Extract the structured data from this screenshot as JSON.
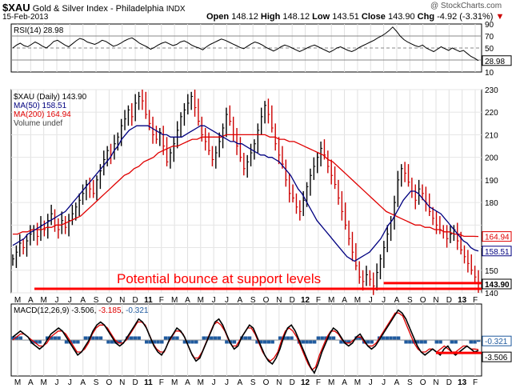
{
  "header": {
    "symbol": "$XAU",
    "name": "Gold & Silver Index - Philadelphia",
    "exchange": "INDX",
    "date": "15-Feb-2013",
    "open_label": "Open",
    "open": "148.12",
    "high_label": "High",
    "high": "148.12",
    "low_label": "Low",
    "low": "143.51",
    "close_label": "Close",
    "close": "143.90",
    "chg_label": "Chg",
    "chg": "-4.92 (-3.31%)",
    "chg_arrow": "▼",
    "watermark": "@ StockCharts.com"
  },
  "colors": {
    "price_up": "#000000",
    "price_down": "#cc0000",
    "ma50": "#000080",
    "ma200": "#e00000",
    "support": "#ff0000",
    "macd_signal": "#e00000",
    "macd_hist": "#1f5a9e"
  },
  "annotation": {
    "text": "Potential bounce at support levels",
    "color": "#ff0000"
  },
  "chart_data": [
    {
      "type": "line",
      "title": "RSI(14) 28.98",
      "ylim": [
        10,
        90
      ],
      "ticks": [
        10,
        30,
        50,
        70,
        90
      ],
      "reference_lines": [
        30,
        50,
        70
      ],
      "last_label": "28.98",
      "series": [
        {
          "name": "RSI(14)",
          "values": [
            50,
            55,
            58,
            54,
            52,
            56,
            60,
            57,
            53,
            50,
            55,
            61,
            63,
            59,
            55,
            52,
            57,
            62,
            66,
            64,
            60,
            58,
            56,
            59,
            63,
            61,
            57,
            53,
            55,
            58,
            62,
            65,
            67,
            63,
            58,
            55,
            52,
            48,
            51,
            55,
            58,
            60,
            57,
            54,
            56,
            60,
            62,
            59,
            55,
            52,
            50,
            47,
            52,
            56,
            59,
            62,
            65,
            63,
            60,
            57,
            54,
            51,
            49,
            53,
            57,
            60,
            58,
            55,
            51,
            48,
            45,
            48,
            52,
            55,
            53,
            50,
            47,
            44,
            47,
            50,
            53,
            55,
            52,
            49,
            46,
            43,
            46,
            50,
            52,
            49,
            46,
            44,
            47,
            51,
            54,
            57,
            60,
            63,
            67,
            70,
            74,
            79,
            85,
            78,
            70,
            64,
            60,
            57,
            54,
            52,
            55,
            50,
            47,
            44,
            48,
            52,
            49,
            46,
            50,
            47,
            44,
            46,
            41,
            36,
            33,
            29
          ]
        }
      ]
    },
    {
      "type": "line",
      "title": "$XAU (Daily) 143.90",
      "ylim": [
        140,
        230
      ],
      "ticks": [
        140,
        150,
        160,
        170,
        180,
        190,
        200,
        210,
        220,
        230
      ],
      "x_ticks": [
        "M",
        "A",
        "M",
        "J",
        "J",
        "A",
        "S",
        "O",
        "N",
        "D",
        "11",
        "F",
        "M",
        "A",
        "M",
        "J",
        "J",
        "A",
        "S",
        "O",
        "N",
        "D",
        "12",
        "F",
        "M",
        "A",
        "M",
        "J",
        "J",
        "A",
        "S",
        "O",
        "N",
        "D",
        "13",
        "F"
      ],
      "close": [
        155,
        158,
        162,
        160,
        163,
        166,
        168,
        165,
        170,
        168,
        172,
        175,
        170,
        168,
        172,
        169,
        172,
        175,
        178,
        181,
        184,
        188,
        186,
        184,
        190,
        194,
        199,
        203,
        201,
        206,
        209,
        214,
        217,
        221,
        218,
        224,
        227,
        225,
        219,
        215,
        210,
        208,
        211,
        205,
        198,
        202,
        206,
        212,
        218,
        221,
        224,
        227,
        222,
        216,
        210,
        207,
        203,
        199,
        202,
        207,
        213,
        219,
        216,
        210,
        205,
        200,
        195,
        198,
        202,
        206,
        212,
        218,
        223,
        219,
        213,
        206,
        201,
        197,
        190,
        184,
        182,
        178,
        176,
        181,
        187,
        192,
        196,
        200,
        204,
        201,
        196,
        192,
        188,
        182,
        176,
        170,
        164,
        158,
        152,
        147,
        145,
        148,
        146,
        143,
        149,
        155,
        160,
        166,
        172,
        180,
        190,
        195,
        193,
        189,
        185,
        181,
        186,
        184,
        180,
        176,
        173,
        170,
        168,
        167,
        164,
        166,
        168,
        163,
        159,
        156,
        153,
        150,
        147,
        144
      ],
      "last_label": "143.90",
      "series": [
        {
          "name": "MA(50)",
          "label": "MA(50) 158.51",
          "values": [
            161,
            162,
            163,
            164,
            166,
            167,
            168,
            169,
            170,
            171,
            172,
            173,
            174,
            175,
            176,
            178,
            180,
            182,
            184,
            186,
            188,
            190,
            192,
            194,
            196,
            198,
            200,
            203,
            205,
            208,
            210,
            212,
            213,
            214,
            214,
            214,
            214,
            213,
            212,
            211,
            210,
            210,
            209,
            209,
            209,
            209,
            210,
            211,
            212,
            213,
            214,
            214,
            213,
            212,
            211,
            210,
            209,
            208,
            207,
            207,
            206,
            206,
            205,
            204,
            203,
            202,
            201,
            201,
            200,
            200,
            199,
            198,
            196,
            194,
            192,
            189,
            186,
            184,
            181,
            178,
            175,
            172,
            170,
            168,
            166,
            164,
            162,
            160,
            158,
            156,
            155,
            154,
            155,
            156,
            157,
            158,
            160,
            162,
            164,
            167,
            170,
            172,
            175,
            178,
            181,
            183,
            185,
            185,
            184,
            182,
            180,
            178,
            177,
            176,
            175,
            173,
            171,
            169,
            167,
            165,
            163,
            162,
            160,
            159,
            158.51
          ]
        },
        {
          "name": "MA(200)",
          "label": "MA(200) 164.94",
          "values": [
            166,
            166,
            167,
            167,
            168,
            168,
            168,
            169,
            169,
            170,
            170,
            171,
            172,
            173,
            174,
            176,
            178,
            180,
            182,
            184,
            186,
            188,
            190,
            192,
            193,
            195,
            196,
            198,
            199,
            200,
            202,
            203,
            204,
            205,
            205,
            206,
            207,
            208,
            208,
            209,
            209,
            209,
            209,
            209,
            210,
            210,
            210,
            210,
            210,
            210,
            210,
            210,
            210,
            209,
            209,
            208,
            208,
            207,
            207,
            206,
            205,
            204,
            203,
            202,
            201,
            199,
            198,
            196,
            194,
            192,
            190,
            188,
            186,
            184,
            182,
            180,
            178,
            176,
            175,
            174,
            173,
            172,
            171,
            170,
            170,
            169,
            169,
            168,
            168,
            167,
            167,
            166,
            166,
            165,
            165,
            165,
            164.94
          ]
        }
      ],
      "legend": [
        "$XAU (Daily) 143.90",
        "MA(50) 158.51",
        "MA(200) 164.94",
        "Volume undef"
      ],
      "support_lines": [
        {
          "from_month": "M",
          "to_month": "F",
          "level": 142.5
        },
        {
          "from_month": "J",
          "to_month": "F",
          "level": 145.0
        }
      ]
    },
    {
      "type": "line",
      "title": "MACD(12,26,9) -3.506, -3.185, -0.321",
      "legend_parts": [
        "MACD(12,26,9)",
        "-3.506",
        ",",
        "-3.185",
        ",",
        "-0.321"
      ],
      "ylim": [
        -12,
        12
      ],
      "last_labels": [
        "-0.321",
        "-3.506"
      ],
      "series": [
        {
          "name": "MACD",
          "values": [
            1,
            2,
            3,
            2,
            1,
            -1,
            -2,
            -3,
            -2,
            0,
            2,
            3,
            4,
            3,
            1,
            -1,
            -3,
            -5,
            -4,
            -2,
            0,
            3,
            5,
            6,
            5,
            3,
            1,
            -1,
            -2,
            -1,
            1,
            3,
            5,
            7,
            6,
            4,
            1,
            -2,
            -4,
            -5,
            -3,
            0,
            2,
            4,
            3,
            1,
            -2,
            -5,
            -7,
            -6,
            -3,
            0,
            3,
            6,
            7,
            5,
            2,
            -1,
            -3,
            -2,
            1,
            3,
            5,
            4,
            1,
            -2,
            -5,
            -7,
            -8,
            -6,
            -3,
            1,
            4,
            5,
            3,
            0,
            -3,
            -6,
            -9,
            -11,
            -8,
            -4,
            -1,
            2,
            4,
            3,
            1,
            -1,
            -2,
            -1,
            1,
            2,
            0,
            -2,
            -3,
            -2,
            0,
            2,
            4,
            6,
            8,
            10,
            9,
            7,
            4,
            1,
            -2,
            -4,
            -5,
            -4,
            -3,
            -4,
            -5,
            -3,
            -2,
            -4,
            -5,
            -4,
            -3,
            -2,
            -3,
            -4,
            -3.506
          ]
        },
        {
          "name": "Signal",
          "values": [
            0,
            1,
            2,
            2,
            1,
            0,
            -1,
            -2,
            -2,
            -1,
            1,
            2,
            3,
            3,
            2,
            0,
            -2,
            -4,
            -4,
            -3,
            -1,
            2,
            4,
            5,
            5,
            4,
            2,
            0,
            -1,
            -1,
            0,
            2,
            4,
            6,
            6,
            5,
            2,
            -1,
            -3,
            -4,
            -4,
            -1,
            1,
            3,
            3,
            2,
            -1,
            -4,
            -6,
            -6,
            -4,
            -1,
            2,
            5,
            6,
            5,
            3,
            0,
            -2,
            -2,
            0,
            2,
            4,
            4,
            2,
            -1,
            -4,
            -6,
            -7,
            -6,
            -4,
            0,
            3,
            4,
            3,
            1,
            -2,
            -5,
            -8,
            -10,
            -9,
            -5,
            -2,
            1,
            3,
            3,
            2,
            0,
            -1,
            -1,
            0,
            1,
            1,
            -1,
            -2,
            -2,
            -1,
            1,
            3,
            5,
            7,
            9,
            9,
            8,
            5,
            2,
            -1,
            -3,
            -4,
            -4,
            -3,
            -3,
            -4,
            -3,
            -2,
            -3,
            -4,
            -4,
            -3,
            -2,
            -2,
            -3,
            -3,
            -3.185
          ]
        }
      ],
      "x_ticks": [
        "M",
        "A",
        "M",
        "J",
        "J",
        "A",
        "S",
        "O",
        "N",
        "D",
        "11",
        "F",
        "M",
        "A",
        "M",
        "J",
        "J",
        "A",
        "S",
        "O",
        "N",
        "D",
        "12",
        "F",
        "M",
        "A",
        "M",
        "J",
        "J",
        "A",
        "S",
        "O",
        "N",
        "D",
        "13",
        "F"
      ]
    }
  ]
}
